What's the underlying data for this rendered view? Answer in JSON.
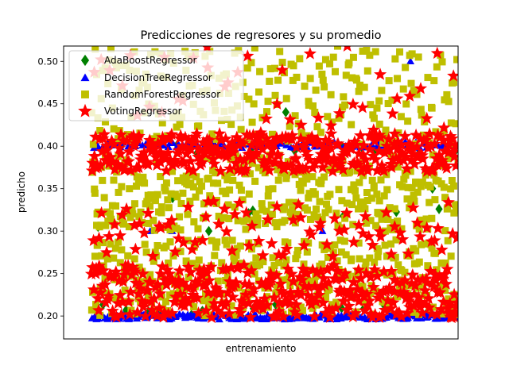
{
  "chart_data": {
    "type": "scatter",
    "title": "Predicciones de regresores y su promedio",
    "xlabel": "entrenamiento",
    "ylabel": "predicho",
    "ylim": [
      0.173,
      0.518
    ],
    "yticks": [
      0.2,
      0.25,
      0.3,
      0.35,
      0.4,
      0.45,
      0.5
    ],
    "ytick_labels": [
      "0.20",
      "0.25",
      "0.30",
      "0.35",
      "0.40",
      "0.45",
      "0.50"
    ],
    "xticks": [],
    "grid": false,
    "legend": "top-left",
    "series": [
      {
        "name": "AdaBoostRegressor",
        "marker": "diamond",
        "color": "#008000",
        "bands": [
          {
            "ymin": 0.198,
            "ymax": 0.215,
            "density": 0.05
          },
          {
            "ymin": 0.3,
            "ymax": 0.34,
            "density": 0.02
          },
          {
            "ymin": 0.39,
            "ymax": 0.405,
            "density": 0.05
          }
        ],
        "outliers": [
          {
            "x": 0.53,
            "y": 0.44
          },
          {
            "x": 0.93,
            "y": 0.35
          },
          {
            "x": 0.32,
            "y": 0.3
          }
        ]
      },
      {
        "name": "DecisionTreeRegressor",
        "marker": "triangle",
        "color": "#0000ff",
        "bands": [
          {
            "ymin": 0.196,
            "ymax": 0.202,
            "density": 0.6
          },
          {
            "ymin": 0.398,
            "ymax": 0.405,
            "density": 0.35
          }
        ],
        "outliers": [
          {
            "x": 0.22,
            "y": 0.3
          },
          {
            "x": 0.16,
            "y": 0.3
          },
          {
            "x": 0.87,
            "y": 0.5
          },
          {
            "x": 0.63,
            "y": 0.3
          }
        ]
      },
      {
        "name": "RandomForestRegressor",
        "marker": "square",
        "color": "#bfbf00",
        "bands": [
          {
            "ymin": 0.2,
            "ymax": 0.29,
            "density": 1.0
          },
          {
            "ymin": 0.3,
            "ymax": 0.39,
            "density": 1.0
          },
          {
            "ymin": 0.4,
            "ymax": 0.518,
            "density": 0.7
          }
        ],
        "outliers": []
      },
      {
        "name": "VotingRegressor",
        "marker": "star",
        "color": "#ff0000",
        "bands": [
          {
            "ymin": 0.198,
            "ymax": 0.26,
            "density": 1.0
          },
          {
            "ymin": 0.27,
            "ymax": 0.335,
            "density": 0.25
          },
          {
            "ymin": 0.37,
            "ymax": 0.415,
            "density": 1.0
          },
          {
            "ymin": 0.415,
            "ymax": 0.518,
            "density": 0.12
          }
        ],
        "outliers": []
      }
    ]
  }
}
